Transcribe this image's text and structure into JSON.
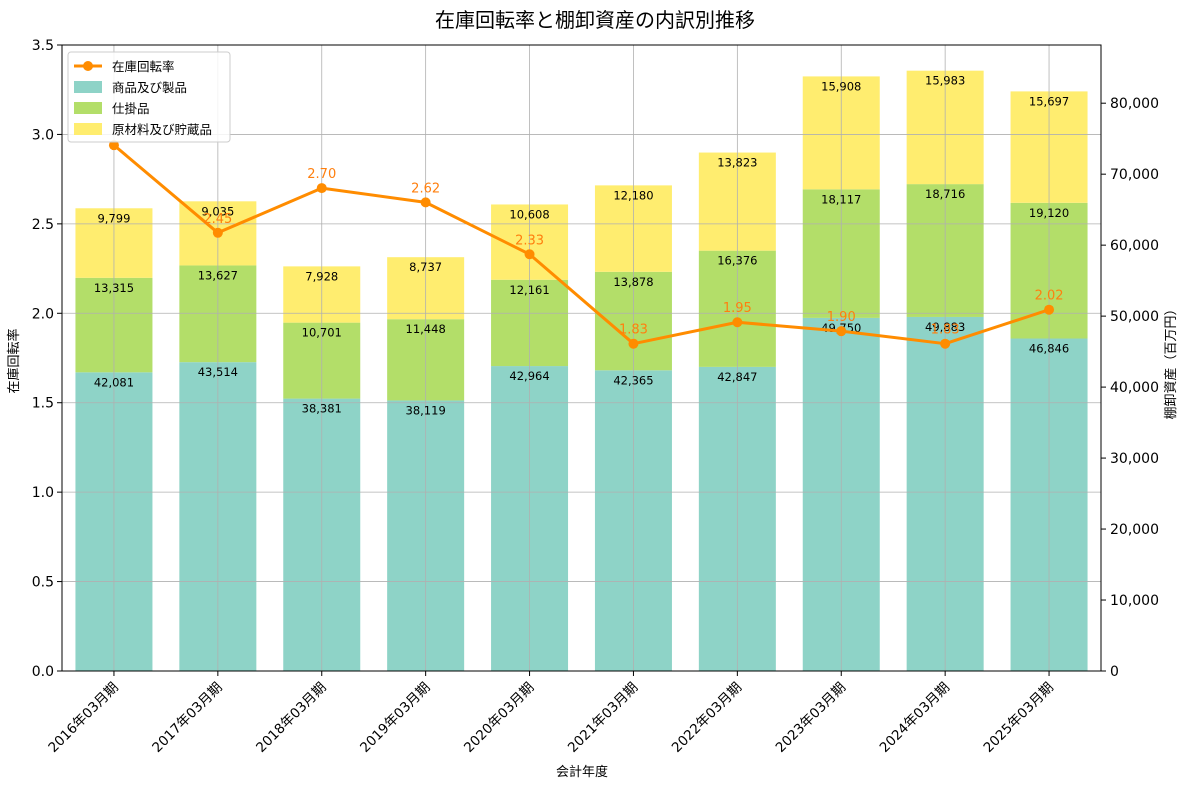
{
  "chart_data": {
    "type": "bar",
    "title": "在庫回転率と棚卸資産の内訳別推移",
    "xlabel": "会計年度",
    "ylabel_left": "在庫回転率",
    "ylabel_right": "棚卸資産（百万円）",
    "categories": [
      "2016年03月期",
      "2017年03月期",
      "2018年03月期",
      "2019年03月期",
      "2020年03月期",
      "2021年03月期",
      "2022年03月期",
      "2023年03月期",
      "2024年03月期",
      "2025年03月期"
    ],
    "bar_series": [
      {
        "name": "商品及び製品",
        "color": "#8ed3c7",
        "values": [
          42081,
          43514,
          38381,
          38119,
          42964,
          42365,
          42847,
          49750,
          49883,
          46846
        ],
        "labels": [
          "42,081",
          "43,514",
          "38,381",
          "38,119",
          "42,964",
          "42,365",
          "42,847",
          "49,750",
          "49,883",
          "46,846"
        ]
      },
      {
        "name": "仕掛品",
        "color": "#b3de69",
        "values": [
          13315,
          13627,
          10701,
          11448,
          12161,
          13878,
          16376,
          18117,
          18716,
          19120
        ],
        "labels": [
          "13,315",
          "13,627",
          "10,701",
          "11,448",
          "12,161",
          "13,878",
          "16,376",
          "18,117",
          "18,716",
          "19,120"
        ]
      },
      {
        "name": "原材料及び貯蔵品",
        "color": "#ffed6f",
        "values": [
          9799,
          9035,
          7928,
          8737,
          10608,
          12180,
          13823,
          15908,
          15983,
          15697
        ],
        "labels": [
          "9,799",
          "9,035",
          "7,928",
          "8,737",
          "10,608",
          "12,180",
          "13,823",
          "15,908",
          "15,983",
          "15,697"
        ]
      }
    ],
    "line_series": {
      "name": "在庫回転率",
      "color": "#ff8c00",
      "values": [
        2.94,
        2.45,
        2.7,
        2.62,
        2.33,
        1.83,
        1.95,
        1.9,
        1.83,
        2.02
      ],
      "labels": [
        "",
        "2.45",
        "2.70",
        "2.62",
        "2.33",
        "1.83",
        "1.95",
        "1.90",
        "1.83",
        "2.02"
      ]
    },
    "ylim_left": [
      0,
      3.5
    ],
    "yticks_left": [
      "0.0",
      "0.5",
      "1.0",
      "1.5",
      "2.0",
      "2.5",
      "3.0",
      "3.5"
    ],
    "ylim_right": [
      0,
      88200
    ],
    "yticks_right": [
      "0",
      "10,000",
      "20,000",
      "30,000",
      "40,000",
      "50,000",
      "60,000",
      "70,000",
      "80,000"
    ],
    "grid": true,
    "legend_placement": "top-left"
  }
}
